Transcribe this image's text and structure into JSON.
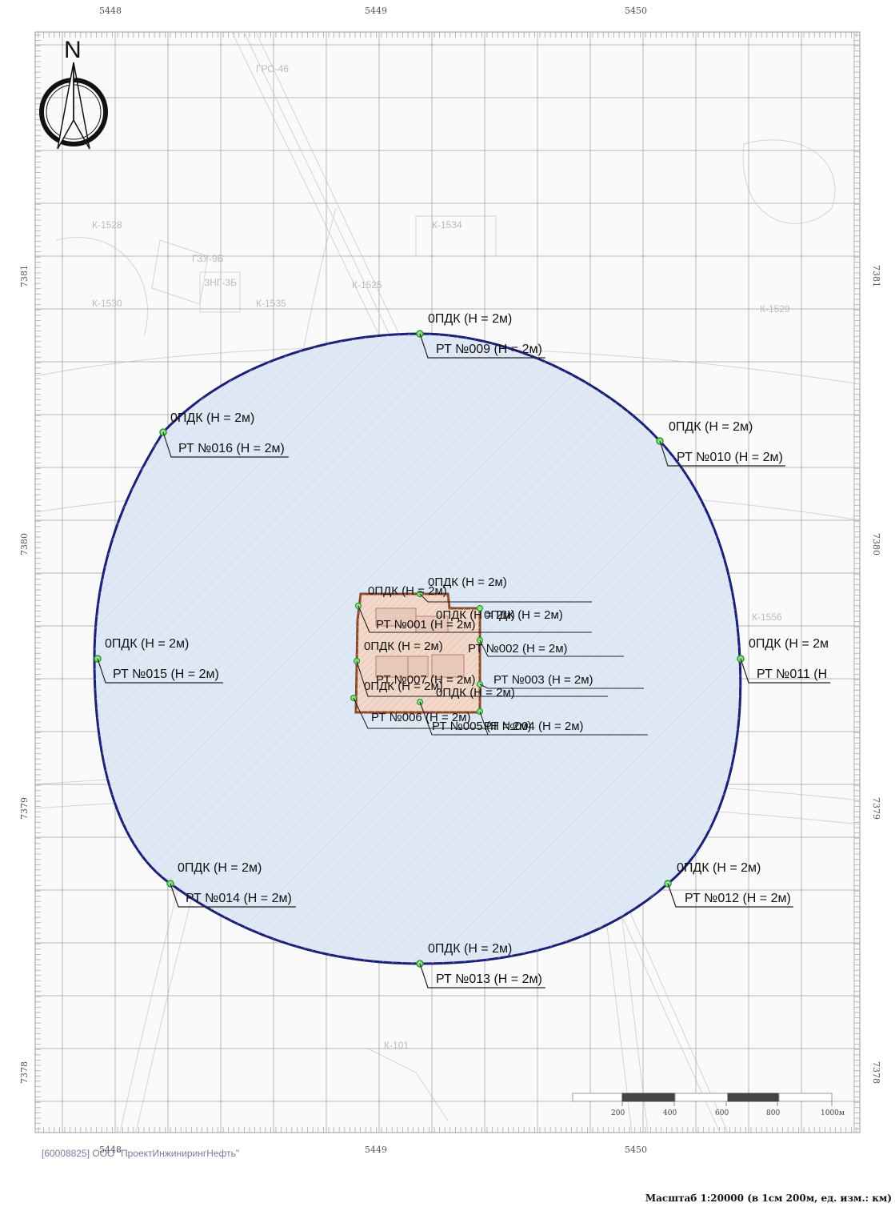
{
  "axes": {
    "x_labels": [
      {
        "value": "5448"
      },
      {
        "value": "5449"
      },
      {
        "value": "5450"
      }
    ],
    "y_labels": [
      {
        "value": "7381"
      },
      {
        "value": "7380"
      },
      {
        "value": "7379"
      },
      {
        "value": "7378"
      }
    ]
  },
  "north_arrow": {
    "letter": "N",
    "icon": "north-arrow-icon"
  },
  "zone": {
    "fill": "#dfe8f5",
    "stroke": "#1a1f78"
  },
  "source": {
    "fill": "#f2d8c8",
    "stroke": "#8a4a2a"
  },
  "points": [
    {
      "id": "009",
      "pdk": "0ПДК (Н = 2м)",
      "rt": "РТ №009 (Н = 2м)"
    },
    {
      "id": "016",
      "pdk": "0ПДК (Н = 2м)",
      "rt": "РТ №016 (Н = 2м)"
    },
    {
      "id": "010",
      "pdk": "0ПДК (Н = 2м)",
      "rt": "РТ №010 (Н = 2м)"
    },
    {
      "id": "015",
      "pdk": "0ПДК (Н = 2м)",
      "rt": "РТ №015 (Н = 2м)"
    },
    {
      "id": "011",
      "pdk": "0ПДК (Н = 2м",
      "rt": "РТ №011 (Н"
    },
    {
      "id": "014",
      "pdk": "0ПДК (Н = 2м)",
      "rt": "РТ №014 (Н = 2м)"
    },
    {
      "id": "012",
      "pdk": "0ПДК (Н = 2м)",
      "rt": "РТ №012 (Н = 2м)"
    },
    {
      "id": "013",
      "pdk": "0ПДК (Н = 2м)",
      "rt": "РТ №013 (Н = 2м)"
    }
  ],
  "cluster_labels": [
    "0ПДК (Н = 2м)",
    "0ПДК (Н = 2м)",
    "РТ №001 (Н = 2м)",
    "0ПДК (Н = 2м)",
    "РТ №002 (Н = 2м)",
    "0ПДК (Н = 2м)",
    "0ПДК (Н = 2м)",
    "РТ №003 (Н = 2м)",
    "РТ №007 (Н = 2м)",
    "0ПДК (Н = 2м)",
    "РТ №006 (Н = 2м)",
    "РТ №005 (Н = 2м)",
    "РТ №004 (Н = 2м)",
    "0ПДК (Н = 2м)"
  ],
  "scale_bar": {
    "ticks": [
      "200",
      "400",
      "600",
      "800",
      "1000м"
    ]
  },
  "company": "[60008825] ООО \"ПроектИнжинирингНефть\"",
  "scale_text": "Масштаб 1:20000 (в 1см 200м, ед. изм.: км)"
}
